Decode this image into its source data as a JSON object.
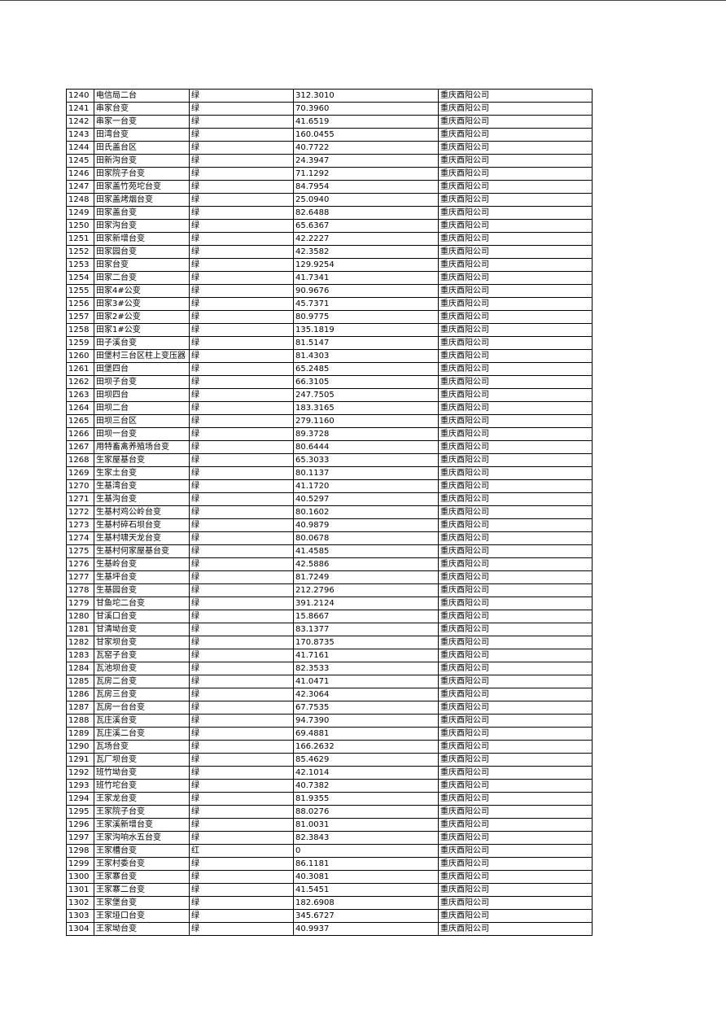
{
  "company": "重庆酉阳公司",
  "rows": [
    [
      "1240",
      "电信局二台",
      "绿",
      "312.3010"
    ],
    [
      "1241",
      "串家台变",
      "绿",
      "70.3960"
    ],
    [
      "1242",
      "串家一台变",
      "绿",
      "41.6519"
    ],
    [
      "1243",
      "田湾台变",
      "绿",
      "160.0455"
    ],
    [
      "1244",
      "田氏盖台区",
      "绿",
      "40.7722"
    ],
    [
      "1245",
      "田新沟台变",
      "绿",
      "24.3947"
    ],
    [
      "1246",
      "田家院子台变",
      "绿",
      "71.1292"
    ],
    [
      "1247",
      "田家盖竹苑坨台变",
      "绿",
      "84.7954"
    ],
    [
      "1248",
      "田家盖烤烟台变",
      "绿",
      "25.0940"
    ],
    [
      "1249",
      "田家盖台变",
      "绿",
      "82.6488"
    ],
    [
      "1250",
      "田家沟台变",
      "绿",
      "65.6367"
    ],
    [
      "1251",
      "田家新增台变",
      "绿",
      "42.2227"
    ],
    [
      "1252",
      "田家园台变",
      "绿",
      "42.3582"
    ],
    [
      "1253",
      "田家台变",
      "绿",
      "129.9254"
    ],
    [
      "1254",
      "田家二台变",
      "绿",
      "41.7341"
    ],
    [
      "1255",
      "田家4#公变",
      "绿",
      "90.9676"
    ],
    [
      "1256",
      "田家3#公变",
      "绿",
      "45.7371"
    ],
    [
      "1257",
      "田家2#公变",
      "绿",
      "80.9775"
    ],
    [
      "1258",
      "田家1#公变",
      "绿",
      "135.1819"
    ],
    [
      "1259",
      "田子溪台变",
      "绿",
      "81.5147"
    ],
    [
      "1260",
      "田堡村三台区柱上变压器",
      "绿",
      "81.4303"
    ],
    [
      "1261",
      "田堡四台",
      "绿",
      "65.2485"
    ],
    [
      "1262",
      "田坝子台变",
      "绿",
      "66.3105"
    ],
    [
      "1263",
      "田坝四台",
      "绿",
      "247.7505"
    ],
    [
      "1264",
      "田坝二台",
      "绿",
      "183.3165"
    ],
    [
      "1265",
      "田坝三台区",
      "绿",
      "279.1160"
    ],
    [
      "1266",
      "田坝一台变",
      "绿",
      "89.3728"
    ],
    [
      "1267",
      "用特畜禽养殖场台变",
      "绿",
      "80.6444"
    ],
    [
      "1268",
      "生家屋基台变",
      "绿",
      "65.3033"
    ],
    [
      "1269",
      "生家土台变",
      "绿",
      "80.1137"
    ],
    [
      "1270",
      "生基湾台变",
      "绿",
      "41.1720"
    ],
    [
      "1271",
      "生基沟台变",
      "绿",
      "40.5297"
    ],
    [
      "1272",
      "生基村鸡公岭台变",
      "绿",
      "80.1602"
    ],
    [
      "1273",
      "生基村碎石坝台变",
      "绿",
      "40.9879"
    ],
    [
      "1274",
      "生基村啸天龙台变",
      "绿",
      "80.0678"
    ],
    [
      "1275",
      "生基村何家屋基台变",
      "绿",
      "41.4585"
    ],
    [
      "1276",
      "生基岭台变",
      "绿",
      "42.5886"
    ],
    [
      "1277",
      "生基坪台变",
      "绿",
      "81.7249"
    ],
    [
      "1278",
      "生基园台变",
      "绿",
      "212.2796"
    ],
    [
      "1279",
      "甘鱼坨二台变",
      "绿",
      "391.2124"
    ],
    [
      "1280",
      "甘溪口台变",
      "绿",
      "15.8667"
    ],
    [
      "1281",
      "甘清坳台变",
      "绿",
      "83.1377"
    ],
    [
      "1282",
      "甘家坝台变",
      "绿",
      "170.8735"
    ],
    [
      "1283",
      "瓦窑子台变",
      "绿",
      "41.7161"
    ],
    [
      "1284",
      "瓦池坝台变",
      "绿",
      "82.3533"
    ],
    [
      "1285",
      "瓦房二台变",
      "绿",
      "41.0471"
    ],
    [
      "1286",
      "瓦房三台变",
      "绿",
      "42.3064"
    ],
    [
      "1287",
      "瓦房一台台变",
      "绿",
      "67.7535"
    ],
    [
      "1288",
      "瓦庄溪台变",
      "绿",
      "94.7390"
    ],
    [
      "1289",
      "瓦庄溪二台变",
      "绿",
      "69.4881"
    ],
    [
      "1290",
      "瓦场台变",
      "绿",
      "166.2632"
    ],
    [
      "1291",
      "瓦厂坝台变",
      "绿",
      "85.4629"
    ],
    [
      "1292",
      "班竹坳台变",
      "绿",
      "42.1014"
    ],
    [
      "1293",
      "班竹坨台变",
      "绿",
      "40.7382"
    ],
    [
      "1294",
      "王家龙台变",
      "绿",
      "81.9355"
    ],
    [
      "1295",
      "王家院子台变",
      "绿",
      "88.0276"
    ],
    [
      "1296",
      "王家溪新增台变",
      "绿",
      "81.0031"
    ],
    [
      "1297",
      "王家沟响水五台变",
      "绿",
      "82.3843"
    ],
    [
      "1298",
      "王家槽台变",
      "红",
      "0"
    ],
    [
      "1299",
      "王家村委台变",
      "绿",
      "86.1181"
    ],
    [
      "1300",
      "王家寨台变",
      "绿",
      "40.3081"
    ],
    [
      "1301",
      "王家寨二台变",
      "绿",
      "41.5451"
    ],
    [
      "1302",
      "王家堡台变",
      "绿",
      "182.6908"
    ],
    [
      "1303",
      "王家垭口台变",
      "绿",
      "345.6727"
    ],
    [
      "1304",
      "王家坳台变",
      "绿",
      "40.9937"
    ]
  ]
}
